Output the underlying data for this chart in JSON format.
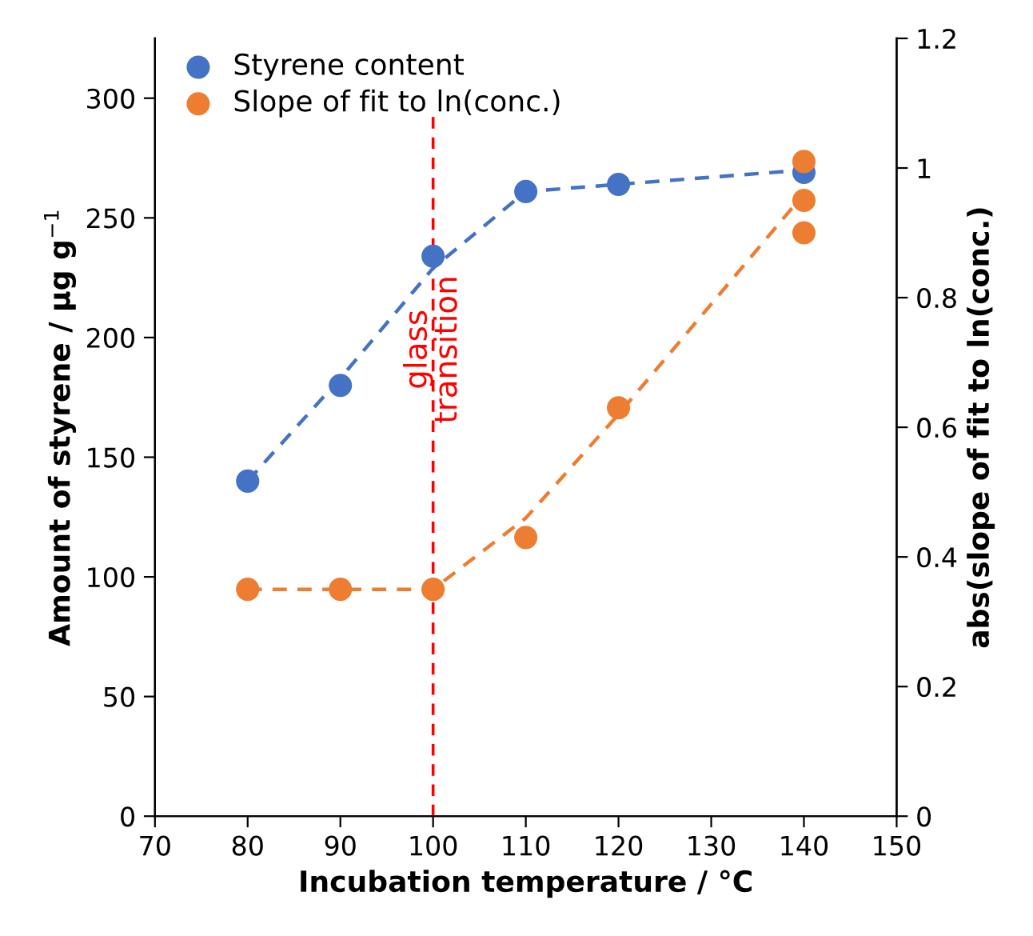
{
  "chart_data": {
    "type": "scatter",
    "xlabel": "Incubation temperature / °C",
    "ylabel": "Amount of styrene / µg g$^{−1}$",
    "y2label": "abs(slope of fit to ln(conc.)",
    "xlim": [
      70,
      150
    ],
    "xticks": [
      70,
      80,
      90,
      100,
      110,
      120,
      130,
      140,
      150
    ],
    "ylim": [
      0,
      325
    ],
    "yticks": [
      0,
      50,
      100,
      150,
      200,
      250,
      300
    ],
    "y2lim": [
      0,
      1.2
    ],
    "y2ticks": [
      0,
      0.2,
      0.4,
      0.6,
      0.8,
      1,
      1.2
    ],
    "grid": false,
    "legend": "top left",
    "marker": "circle",
    "series": [
      {
        "name": "Styrene content",
        "color": "#4472c4",
        "x": [
          80,
          90,
          100,
          110,
          120,
          140
        ],
        "values": [
          140,
          180,
          234,
          261,
          264,
          269
        ]
      },
      {
        "name": "Slope of fit to ln(conc.)",
        "axis": "y2",
        "color": "#ed7d31",
        "x": [
          80,
          90,
          100,
          110,
          120,
          140,
          140,
          140
        ],
        "values": [
          0.35,
          0.35,
          0.35,
          0.43,
          0.63,
          1.01,
          0.95,
          0.9
        ]
      },
      {
        "type": "line",
        "line_style": "dashed",
        "marker": "none",
        "color": "#4472c4",
        "x": [
          80,
          90,
          100,
          110,
          120,
          140
        ],
        "values": [
          140,
          183,
          229,
          261,
          264,
          270
        ]
      },
      {
        "type": "line",
        "line_style": "dashed",
        "marker": "none",
        "axis": "y2",
        "color": "#ed7d31",
        "x": [
          80,
          90,
          100,
          110,
          120,
          130,
          140
        ],
        "values": [
          0.35,
          0.35,
          0.35,
          0.46,
          0.62,
          0.79,
          0.96
        ]
      }
    ],
    "ref_lines": [
      {
        "axis": "x",
        "value": 100,
        "label": "glass\ntransition",
        "color": "#ff0000",
        "line_style": "dashed"
      }
    ]
  }
}
